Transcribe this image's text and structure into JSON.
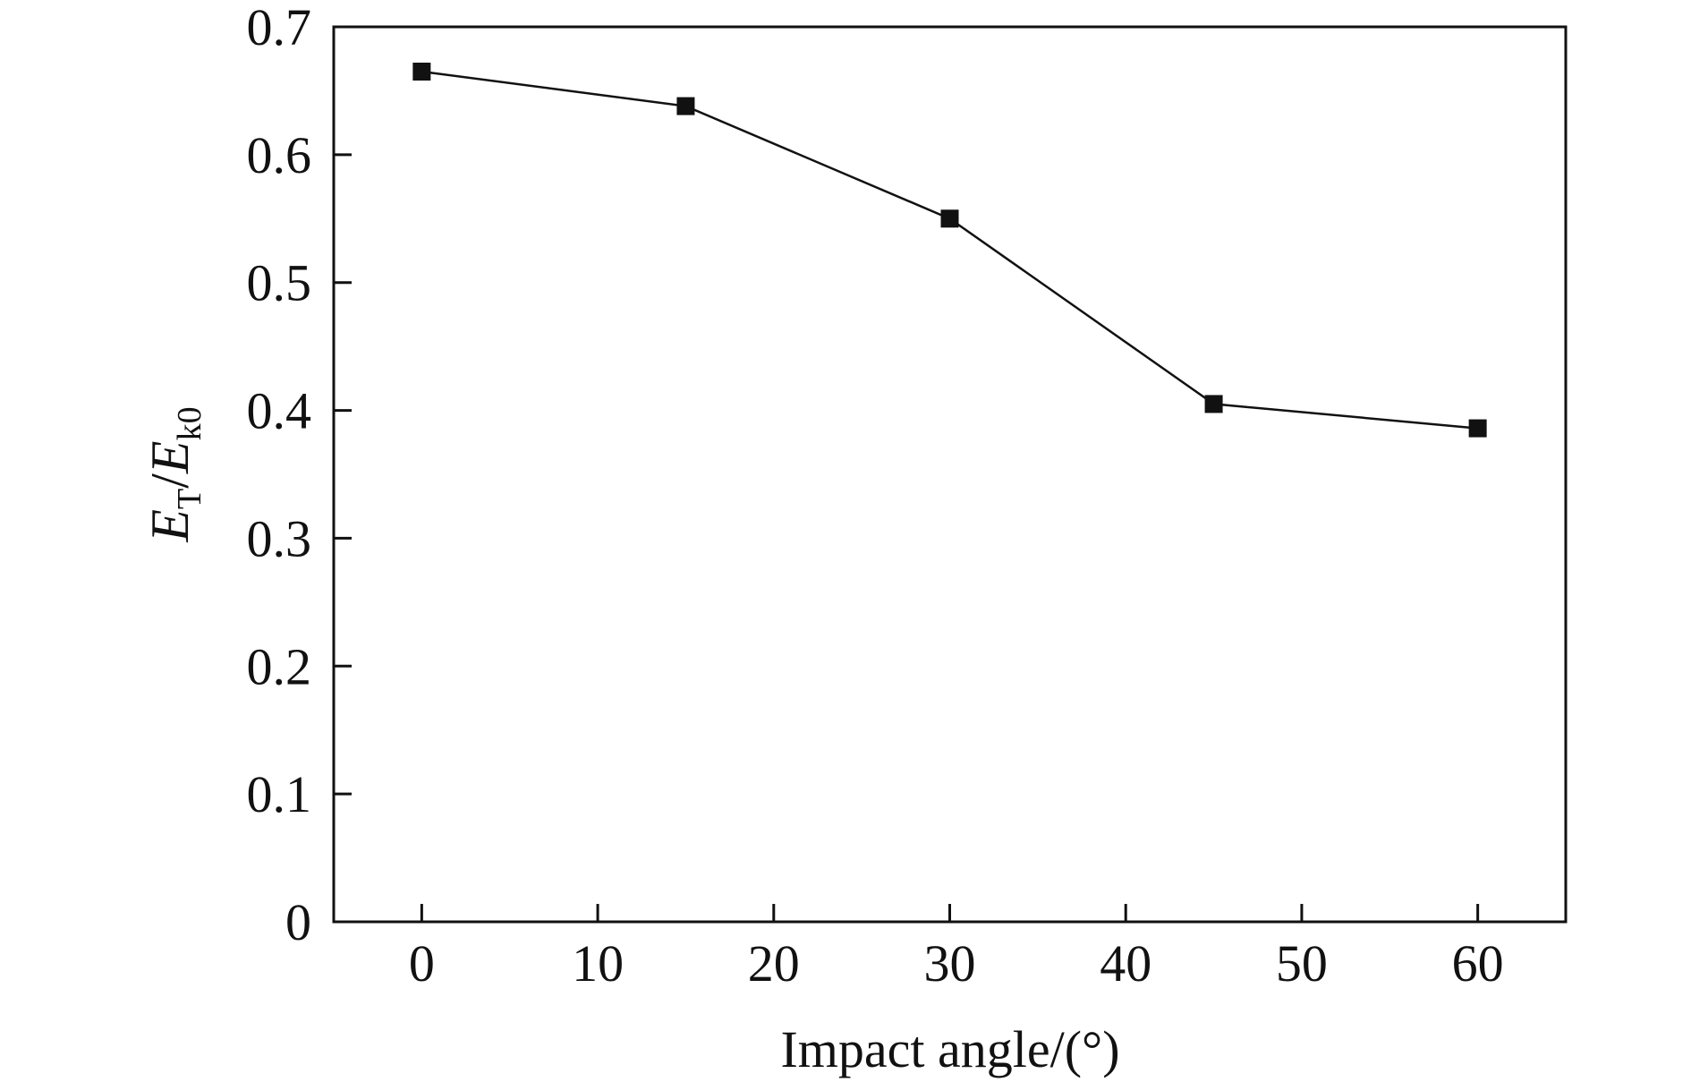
{
  "chart_data": {
    "type": "line",
    "x": [
      0,
      15,
      30,
      45,
      60
    ],
    "series": [
      {
        "values": [
          0.665,
          0.638,
          0.55,
          0.405,
          0.386
        ],
        "color": "#111111",
        "marker": "square"
      }
    ],
    "xlabel": "Impact angle/(°)",
    "ylabel": {
      "num_symbol": "E",
      "num_sub": "T",
      "sep": "/",
      "den_symbol": "E",
      "den_sub": "k0"
    },
    "xlim": [
      -5,
      65
    ],
    "ylim": [
      0,
      0.7
    ],
    "xticks": [
      0,
      10,
      20,
      30,
      40,
      50,
      60
    ],
    "yticks": [
      0,
      0.1,
      0.2,
      0.3,
      0.4,
      0.5,
      0.6,
      0.7
    ],
    "xtick_labels": [
      "0",
      "10",
      "20",
      "30",
      "40",
      "50",
      "60"
    ],
    "ytick_labels": [
      "0",
      "0.1",
      "0.2",
      "0.3",
      "0.4",
      "0.5",
      "0.6",
      "0.7"
    ],
    "grid": false,
    "legend": "none"
  }
}
